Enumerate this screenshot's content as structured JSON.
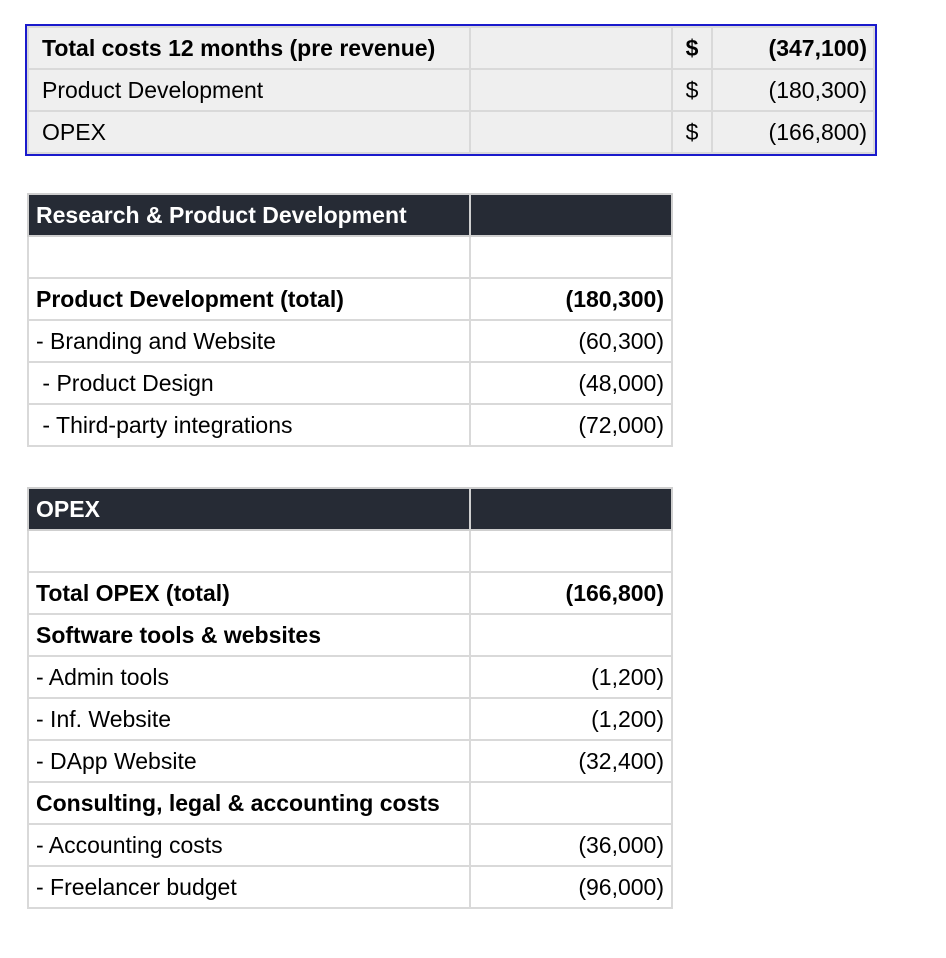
{
  "summary": {
    "rows": [
      {
        "label": "Total costs 12 months (pre revenue)",
        "currency": "$",
        "amount": "(347,100)",
        "bold": true
      },
      {
        "label": "Product Development",
        "currency": "$",
        "amount": "(180,300)",
        "bold": false
      },
      {
        "label": "OPEX",
        "currency": "$",
        "amount": "(166,800)",
        "bold": false
      }
    ]
  },
  "rnd": {
    "title": "Research & Product Development",
    "rows": [
      {
        "label": "Product Development (total)",
        "value": "(180,300)"
      },
      {
        "label": "- Branding and Website",
        "value": "(60,300)"
      },
      {
        "label": " - Product Design",
        "value": "(48,000)"
      },
      {
        "label": " - Third-party integrations",
        "value": "(72,000)"
      }
    ]
  },
  "opex": {
    "title": "OPEX",
    "rows": [
      {
        "label": "Total OPEX (total)",
        "value": "(166,800)"
      },
      {
        "label": "Software tools & websites",
        "value": ""
      },
      {
        "label": "- Admin tools",
        "value": "(1,200)"
      },
      {
        "label": "- Inf. Website",
        "value": "(1,200)"
      },
      {
        "label": "- DApp Website",
        "value": "(32,400)"
      },
      {
        "label": "Consulting, legal & accounting costs",
        "value": ""
      },
      {
        "label": "- Accounting costs",
        "value": "(36,000)"
      },
      {
        "label": "- Freelancer budget",
        "value": "(96,000)"
      }
    ]
  }
}
